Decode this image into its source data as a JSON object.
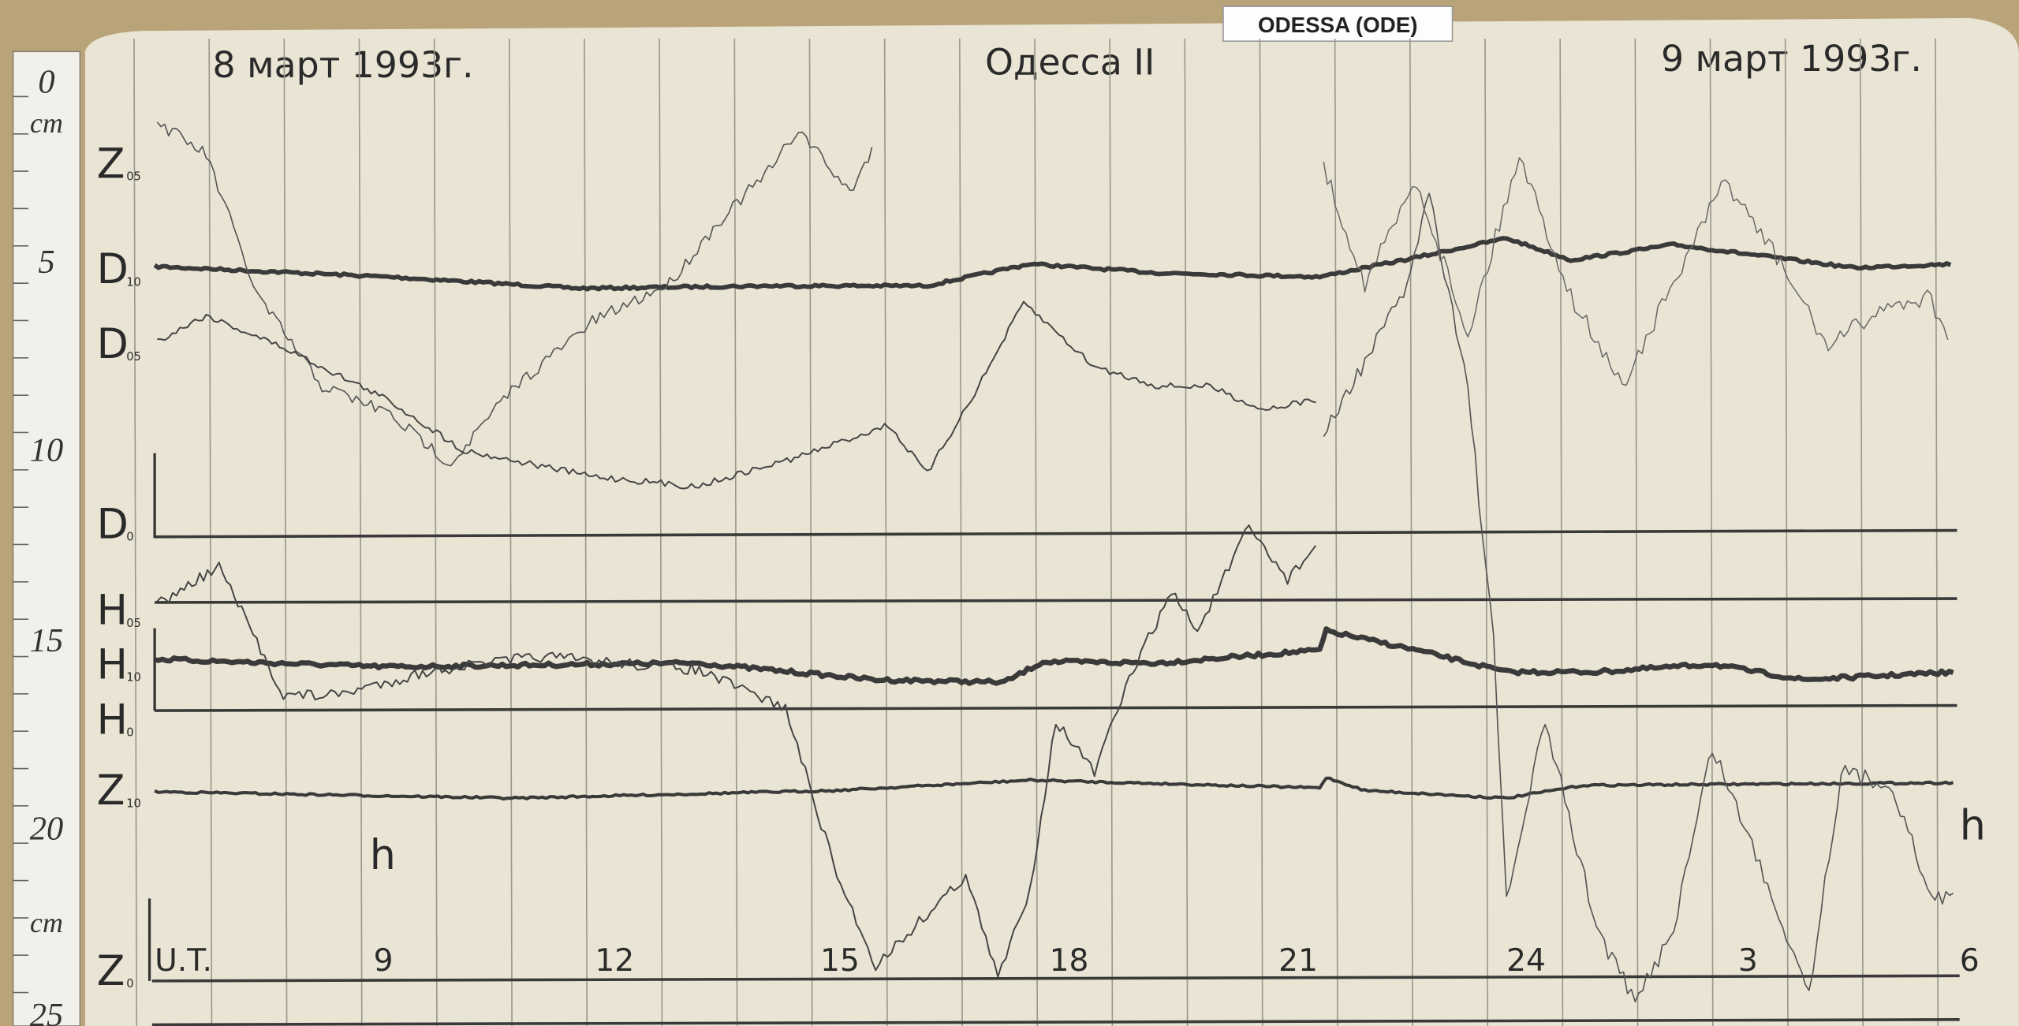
{
  "header": {
    "station": "ODESSA (ODE)"
  },
  "sheet": {
    "date_left": "8 март 1993г.",
    "title": "Одесса II",
    "date_right": "9 март 1993г."
  },
  "ruler": {
    "labels": [
      "0",
      "cm",
      "5",
      "10",
      "15",
      "20",
      "cm",
      "25"
    ]
  },
  "traces": {
    "labels": [
      {
        "letter": "Z",
        "sub": "05"
      },
      {
        "letter": "D",
        "sub": "10"
      },
      {
        "letter": "D",
        "sub": "05"
      },
      {
        "letter": "D",
        "sub": "0"
      },
      {
        "letter": "H",
        "sub": "05"
      },
      {
        "letter": "H",
        "sub": "10"
      },
      {
        "letter": "H",
        "sub": "0"
      },
      {
        "letter": "Z",
        "sub": "10"
      },
      {
        "letter": "Z",
        "sub": "0"
      }
    ]
  },
  "time_axis": {
    "unit": "h",
    "labels": [
      "U.T.",
      "9",
      "12",
      "15",
      "18",
      "21",
      "24",
      "3",
      "6"
    ]
  }
}
